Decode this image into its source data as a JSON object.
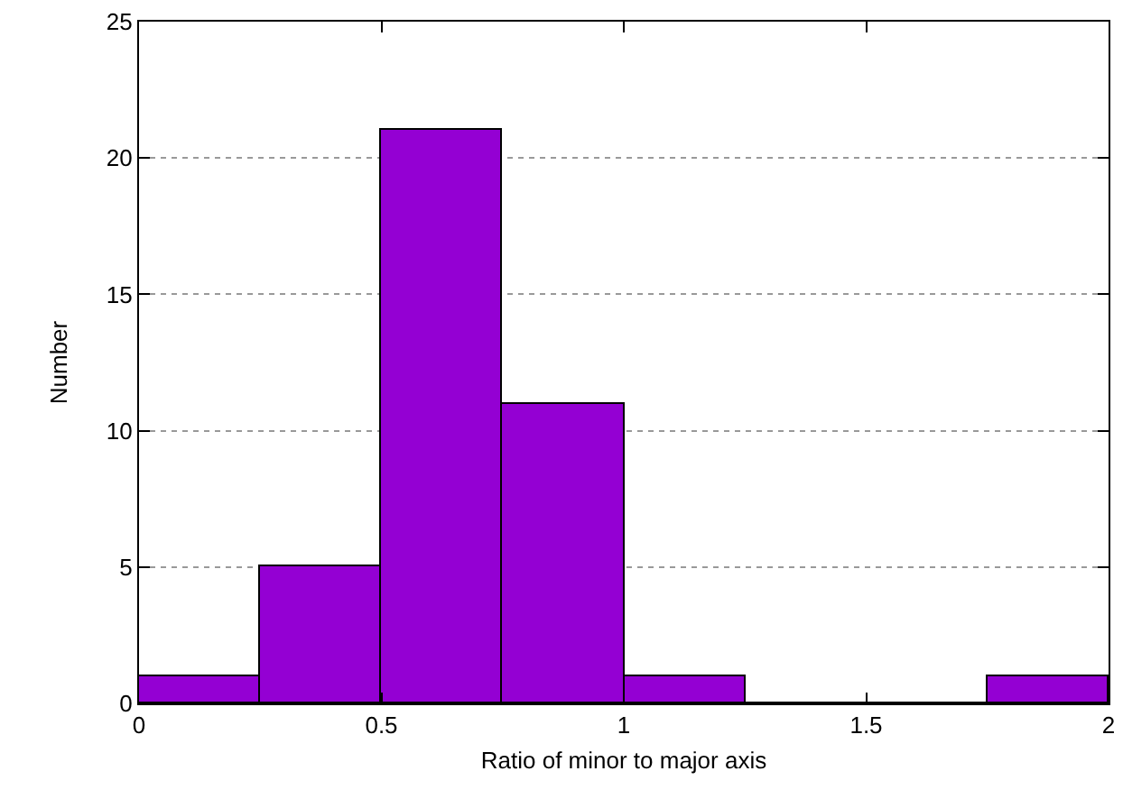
{
  "chart_data": {
    "type": "histogram",
    "xlabel": "Ratio of minor to major axis",
    "ylabel": "Number",
    "bins": [
      0,
      0.25,
      0.5,
      0.75,
      1,
      1.25,
      1.5,
      1.75,
      2
    ],
    "values": [
      1,
      5,
      21,
      11,
      1,
      0,
      0,
      1
    ],
    "color": "#9400d3",
    "xlim": [
      0,
      2
    ],
    "xticks": [
      0,
      0.5,
      1,
      1.5,
      2
    ],
    "ylim": [
      0,
      25
    ],
    "yticks": [
      0,
      5,
      10,
      15,
      20,
      25
    ],
    "grid": "y"
  }
}
